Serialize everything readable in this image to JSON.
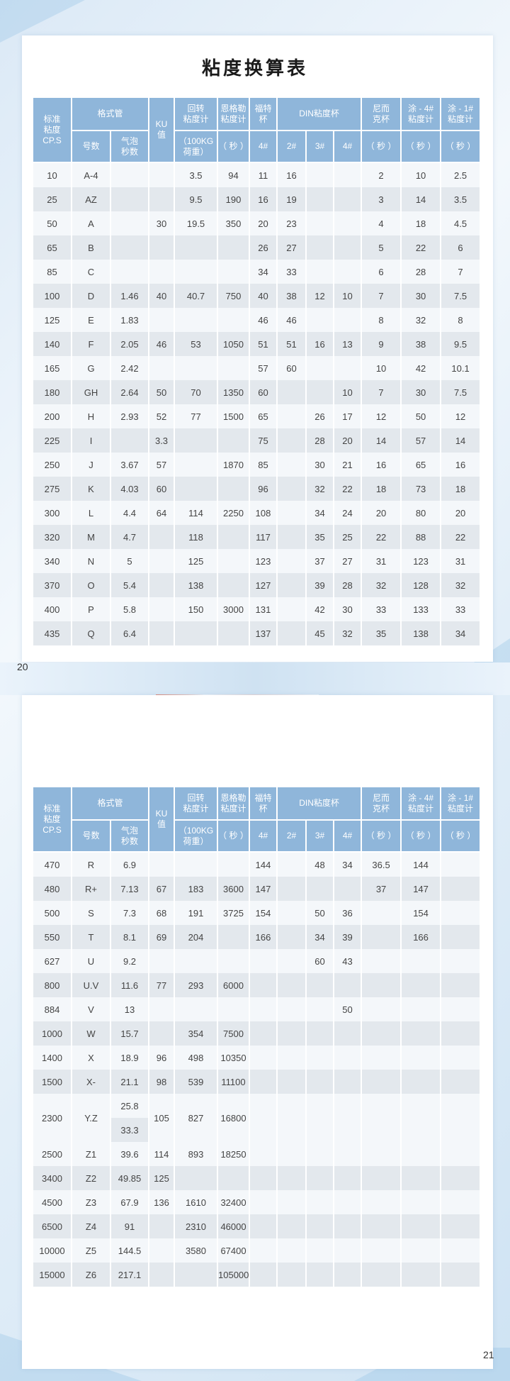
{
  "title": "粘度换算表",
  "page_numbers": [
    "20",
    "21"
  ],
  "colors": {
    "header": "#8fb6da",
    "row_light": "#f4f7fa",
    "row_dark": "#e3e8ed"
  },
  "header": {
    "cps": "标准\n粘度\nCP.S",
    "ford_tube": "格式管",
    "ku": "KU\n值",
    "rotary": "回转\n粘度计",
    "engler": "恩格勒\n粘度计",
    "ford_cup": "福特\n杯",
    "din": "DIN粘度杯",
    "zahn": "尼而\n克杯",
    "tu4": "涂 - 4#\n粘度计",
    "tu1": "涂 - 1#\n粘度计",
    "number": "号数",
    "bubble": "气泡\n秒数",
    "rotary_unit": "（100KG\n荷重）",
    "engler_unit": "（ 秒 ）",
    "ford_4": "4#",
    "din_2": "2#",
    "din_3": "3#",
    "din_4": "4#",
    "zahn_unit": "（ 秒 ）",
    "tu4_unit": "（ 秒 ）",
    "tu1_unit": "（ 秒 ）"
  },
  "page1_rows": [
    [
      "10",
      "A-4",
      "",
      "",
      "3.5",
      "94",
      "11",
      "16",
      "",
      "",
      "2",
      "10",
      "2.5"
    ],
    [
      "25",
      "AZ",
      "",
      "",
      "9.5",
      "190",
      "16",
      "19",
      "",
      "",
      "3",
      "14",
      "3.5"
    ],
    [
      "50",
      "A",
      "",
      "30",
      "19.5",
      "350",
      "20",
      "23",
      "",
      "",
      "4",
      "18",
      "4.5"
    ],
    [
      "65",
      "B",
      "",
      "",
      "",
      "",
      "26",
      "27",
      "",
      "",
      "5",
      "22",
      "6"
    ],
    [
      "85",
      "C",
      "",
      "",
      "",
      "",
      "34",
      "33",
      "",
      "",
      "6",
      "28",
      "7"
    ],
    [
      "100",
      "D",
      "1.46",
      "40",
      "40.7",
      "750",
      "40",
      "38",
      "12",
      "10",
      "7",
      "30",
      "7.5"
    ],
    [
      "125",
      "E",
      "1.83",
      "",
      "",
      "",
      "46",
      "46",
      "",
      "",
      "8",
      "32",
      "8"
    ],
    [
      "140",
      "F",
      "2.05",
      "46",
      "53",
      "1050",
      "51",
      "51",
      "16",
      "13",
      "9",
      "38",
      "9.5"
    ],
    [
      "165",
      "G",
      "2.42",
      "",
      "",
      "",
      "57",
      "60",
      "",
      "",
      "10",
      "42",
      "10.1"
    ],
    [
      "180",
      "GH",
      "2.64",
      "50",
      "70",
      "1350",
      "60",
      "",
      "",
      "10",
      "7",
      "30",
      "7.5"
    ],
    [
      "200",
      "H",
      "2.93",
      "52",
      "77",
      "1500",
      "65",
      "",
      "26",
      "17",
      "12",
      "50",
      "12"
    ],
    [
      "225",
      "I",
      "",
      "3.3",
      "",
      "",
      "75",
      "",
      "28",
      "20",
      "14",
      "57",
      "14"
    ],
    [
      "250",
      "J",
      "3.67",
      "57",
      "",
      "1870",
      "85",
      "",
      "30",
      "21",
      "16",
      "65",
      "16"
    ],
    [
      "275",
      "K",
      "4.03",
      "60",
      "",
      "",
      "96",
      "",
      "32",
      "22",
      "18",
      "73",
      "18"
    ],
    [
      "300",
      "L",
      "4.4",
      "64",
      "114",
      "2250",
      "108",
      "",
      "34",
      "24",
      "20",
      "80",
      "20"
    ],
    [
      "320",
      "M",
      "4.7",
      "",
      "118",
      "",
      "117",
      "",
      "35",
      "25",
      "22",
      "88",
      "22"
    ],
    [
      "340",
      "N",
      "5",
      "",
      "125",
      "",
      "123",
      "",
      "37",
      "27",
      "31",
      "123",
      "31"
    ],
    [
      "370",
      "O",
      "5.4",
      "",
      "138",
      "",
      "127",
      "",
      "39",
      "28",
      "32",
      "128",
      "32"
    ],
    [
      "400",
      "P",
      "5.8",
      "",
      "150",
      "3000",
      "131",
      "",
      "42",
      "30",
      "33",
      "133",
      "33"
    ],
    [
      "435",
      "Q",
      "6.4",
      "",
      "",
      "",
      "137",
      "",
      "45",
      "32",
      "35",
      "138",
      "34"
    ]
  ],
  "page2_rows": [
    [
      "470",
      "R",
      "6.9",
      "",
      "",
      "",
      "144",
      "",
      "48",
      "34",
      "36.5",
      "144",
      ""
    ],
    [
      "480",
      "R+",
      "7.13",
      "67",
      "183",
      "3600",
      "147",
      "",
      "",
      "",
      "37",
      "147",
      ""
    ],
    [
      "500",
      "S",
      "7.3",
      "68",
      "191",
      "3725",
      "154",
      "",
      "50",
      "36",
      "",
      "154",
      ""
    ],
    [
      "550",
      "T",
      "8.1",
      "69",
      "204",
      "",
      "166",
      "",
      "34",
      "39",
      "",
      "166",
      ""
    ],
    [
      "627",
      "U",
      "9.2",
      "",
      "",
      "",
      "",
      "",
      "60",
      "43",
      "",
      "",
      ""
    ],
    [
      "800",
      "U.V",
      "11.6",
      "77",
      "293",
      "6000",
      "",
      "",
      "",
      "",
      "",
      "",
      ""
    ],
    [
      "884",
      "V",
      "13",
      "",
      "",
      "",
      "",
      "",
      "",
      "50",
      "",
      "",
      ""
    ],
    [
      "1000",
      "W",
      "15.7",
      "",
      "354",
      "7500",
      "",
      "",
      "",
      "",
      "",
      "",
      ""
    ],
    [
      "1400",
      "X",
      "18.9",
      "96",
      "498",
      "10350",
      "",
      "",
      "",
      "",
      "",
      "",
      ""
    ],
    [
      "1500",
      "X-",
      "21.1",
      "98",
      "539",
      "11100",
      "",
      "",
      "",
      "",
      "",
      "",
      ""
    ],
    [
      "2300",
      "Y.Z",
      [
        "25.8",
        "33.3"
      ],
      "105",
      "827",
      "16800",
      "",
      "",
      "",
      "",
      "",
      "",
      ""
    ],
    [
      "2500",
      "Z1",
      "39.6",
      "114",
      "893",
      "18250",
      "",
      "",
      "",
      "",
      "",
      "",
      ""
    ],
    [
      "3400",
      "Z2",
      "49.85",
      "125",
      "",
      "",
      "",
      "",
      "",
      "",
      "",
      "",
      ""
    ],
    [
      "4500",
      "Z3",
      "67.9",
      "136",
      "1610",
      "32400",
      "",
      "",
      "",
      "",
      "",
      "",
      ""
    ],
    [
      "6500",
      "Z4",
      "91",
      "",
      "2310",
      "46000",
      "",
      "",
      "",
      "",
      "",
      "",
      ""
    ],
    [
      "10000",
      "Z5",
      "144.5",
      "",
      "3580",
      "67400",
      "",
      "",
      "",
      "",
      "",
      "",
      ""
    ],
    [
      "15000",
      "Z6",
      "217.1",
      "",
      "",
      "105000",
      "",
      "",
      "",
      "",
      "",
      "",
      ""
    ]
  ]
}
